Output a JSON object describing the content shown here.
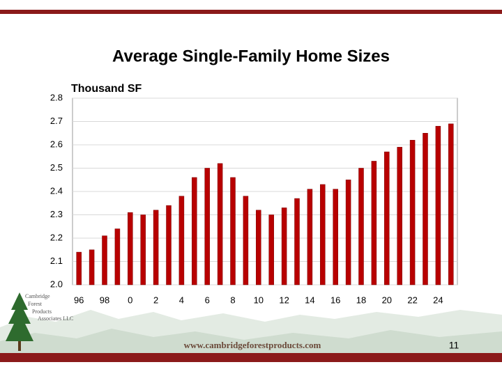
{
  "chart_data": {
    "type": "bar",
    "title": "Average Single-Family Home Sizes",
    "y_label": "Thousand SF",
    "categories": [
      "96",
      null,
      "98",
      null,
      "0",
      null,
      "2",
      null,
      "4",
      null,
      "6",
      null,
      "8",
      null,
      "10",
      null,
      "12",
      null,
      "14",
      null,
      "16",
      null,
      "18",
      null,
      "20",
      null,
      "22",
      null,
      "24",
      null
    ],
    "values": [
      2.14,
      2.15,
      2.21,
      2.24,
      2.31,
      2.3,
      2.32,
      2.34,
      2.38,
      2.46,
      2.5,
      2.52,
      2.46,
      2.38,
      2.32,
      2.3,
      2.33,
      2.37,
      2.41,
      2.43,
      2.41,
      2.45,
      2.5,
      2.53,
      2.57,
      2.59,
      2.62,
      2.65,
      2.68,
      2.69
    ],
    "color": "#b80000",
    "ylim": [
      2.0,
      2.8
    ],
    "yticks": [
      {
        "value": 2.0,
        "label": "2.0"
      },
      2.1,
      2.2,
      2.3,
      2.4,
      2.5,
      2.6,
      2.7,
      2.8
    ],
    "grid": true
  },
  "footer": {
    "url": "www.cambridgeforestproducts.com",
    "page_number": "11",
    "logo": [
      "Cambridge",
      "Forest",
      "Products",
      "Associates LLC"
    ]
  }
}
